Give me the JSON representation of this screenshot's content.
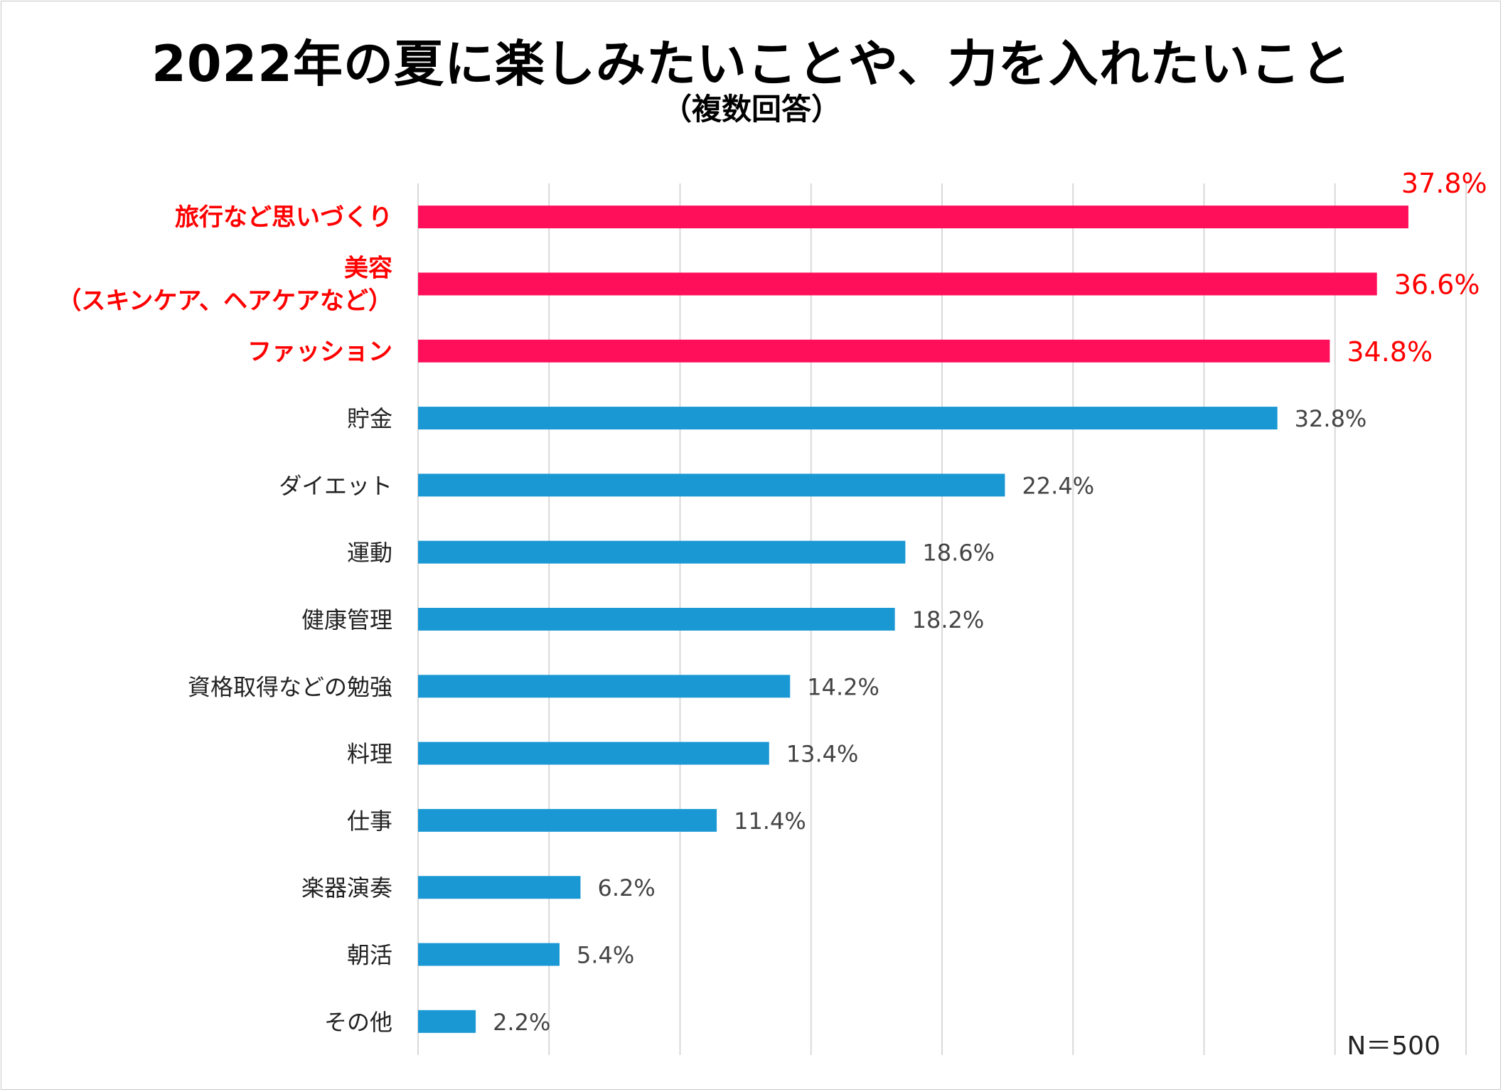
{
  "chart_data": {
    "type": "bar",
    "orientation": "horizontal",
    "title": "2022年の夏に楽しみたいことや、力を入れたいこと",
    "subtitle": "（複数回答）",
    "note": "N＝500",
    "xlim": [
      0,
      40
    ],
    "grid": true,
    "categories": [
      "旅行など思いづくり",
      "美容\n（スキンケア、ヘアケアなど）",
      "ファッション",
      "貯金",
      "ダイエット",
      "運動",
      "健康管理",
      "資格取得などの勉強",
      "料理",
      "仕事",
      "楽器演奏",
      "朝活",
      "その他"
    ],
    "values": [
      37.8,
      36.6,
      34.8,
      32.8,
      22.4,
      18.6,
      18.2,
      14.2,
      13.4,
      11.4,
      6.2,
      5.4,
      2.2
    ],
    "value_labels": [
      "37.8%",
      "36.6%",
      "34.8%",
      "32.8%",
      "22.4%",
      "18.6%",
      "18.2%",
      "14.2%",
      "13.4%",
      "11.4%",
      "6.2%",
      "5.4%",
      "2.2%"
    ],
    "highlighted": [
      true,
      true,
      true,
      false,
      false,
      false,
      false,
      false,
      false,
      false,
      false,
      false,
      false
    ],
    "colors": {
      "highlight_bar": "#ff0f5a",
      "normal_bar": "#1a98d4",
      "highlight_text": "#ff0000",
      "normal_text": "#222222",
      "value_text": "#444444",
      "grid": "#d9d9d9"
    }
  }
}
